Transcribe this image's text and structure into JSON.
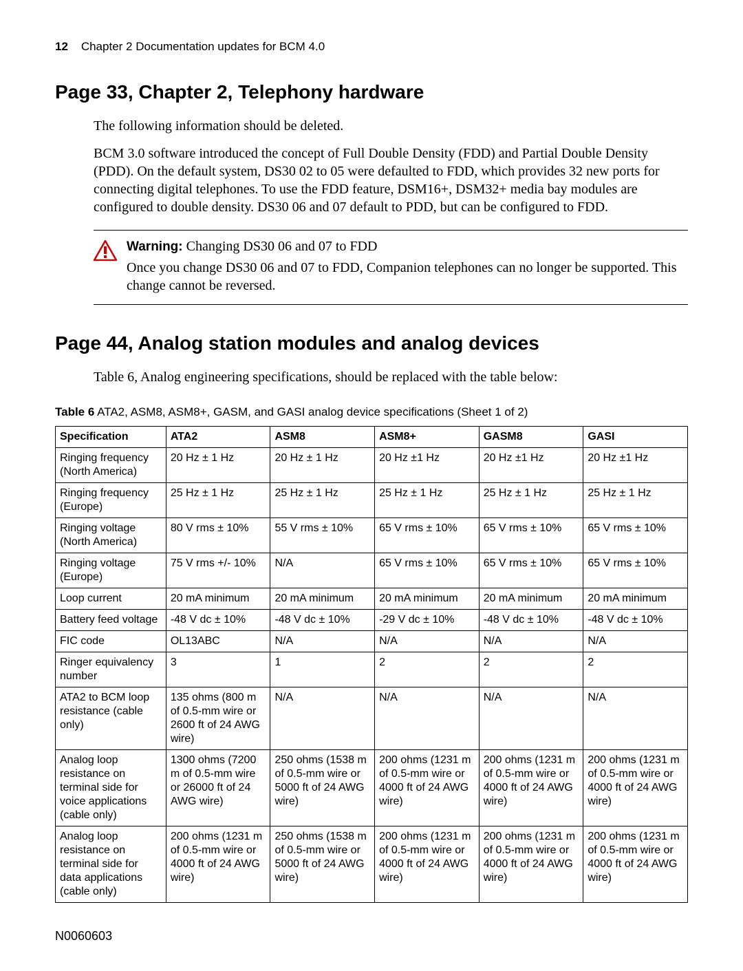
{
  "header": {
    "page_number": "12",
    "chapter_text": "Chapter 2  Documentation updates for BCM 4.0"
  },
  "section1": {
    "heading": "Page 33, Chapter 2, Telephony hardware",
    "para1": "The following information should be deleted.",
    "para2": "BCM 3.0 software introduced the concept of Full Double Density (FDD) and Partial Double Density (PDD). On the default system, DS30 02 to 05 were defaulted to FDD, which provides 32 new ports for connecting digital telephones. To use the FDD feature, DSM16+, DSM32+ media bay modules are configured to double density. DS30 06 and 07 default to PDD, but can be configured to FDD."
  },
  "warning": {
    "label": "Warning:",
    "title_rest": " Changing DS30 06 and 07 to FDD",
    "body": "Once you change DS30 06 and 07 to FDD, Companion telephones can no longer be supported. This change cannot be reversed.",
    "icon_color": "#d10000"
  },
  "section2": {
    "heading": "Page 44, Analog station modules and analog devices",
    "para1": "Table 6, Analog engineering specifications, should be replaced with the table below:"
  },
  "table": {
    "caption_bold": "Table 6",
    "caption_rest": "   ATA2, ASM8, ASM8+, GASM, and GASI analog device specifications (Sheet 1 of 2)",
    "columns": [
      "Specification",
      "ATA2",
      "ASM8",
      "ASM8+",
      "GASM8",
      "GASI"
    ],
    "rows": [
      [
        "Ringing frequency (North America)",
        "20 Hz ± 1 Hz",
        "20 Hz ± 1 Hz",
        "20 Hz ±1 Hz",
        "20 Hz ±1 Hz",
        "20 Hz ±1 Hz"
      ],
      [
        "Ringing frequency (Europe)",
        "25 Hz ± 1 Hz",
        "25 Hz ± 1 Hz",
        "25 Hz ± 1 Hz",
        "25 Hz ± 1 Hz",
        "25 Hz ± 1 Hz"
      ],
      [
        "Ringing voltage (North America)",
        "80 V rms ± 10%",
        "55 V rms ± 10%",
        "65 V rms ± 10%",
        "65 V rms ± 10%",
        "65 V rms ± 10%"
      ],
      [
        "Ringing voltage (Europe)",
        "75 V rms +/- 10%",
        "N/A",
        "65 V rms ± 10%",
        "65 V rms ± 10%",
        "65 V rms ± 10%"
      ],
      [
        "Loop current",
        "20 mA minimum",
        "20 mA minimum",
        "20 mA minimum",
        "20 mA minimum",
        "20 mA minimum"
      ],
      [
        "Battery feed voltage",
        "-48 V dc ± 10%",
        "-48 V dc ± 10%",
        "-29 V dc ± 10%",
        "-48 V dc ± 10%",
        "-48 V dc ± 10%"
      ],
      [
        "FIC code",
        "OL13ABC",
        "N/A",
        "N/A",
        "N/A",
        "N/A"
      ],
      [
        "Ringer equivalency number",
        "3",
        "1",
        "2",
        "2",
        "2"
      ],
      [
        "ATA2 to BCM loop resistance (cable only)",
        "135 ohms (800 m of 0.5-mm wire or 2600 ft of 24 AWG wire)",
        "N/A",
        "N/A",
        "N/A",
        "N/A"
      ],
      [
        "Analog loop resistance on terminal side for voice applications (cable only)",
        "1300 ohms (7200 m of 0.5-mm wire or 26000 ft of 24 AWG wire)",
        "250 ohms (1538 m of 0.5-mm wire or 5000 ft of 24 AWG wire)",
        "200 ohms (1231 m of 0.5-mm wire or 4000 ft of 24 AWG wire)",
        "200 ohms (1231 m of 0.5-mm wire or 4000 ft of 24 AWG wire)",
        "200 ohms (1231 m of 0.5-mm wire or 4000 ft of 24 AWG wire)"
      ],
      [
        "Analog loop resistance on terminal side for data applications (cable only)",
        "200 ohms (1231 m of 0.5-mm wire or 4000 ft of 24 AWG wire)",
        "250 ohms (1538 m of 0.5-mm wire or 5000 ft of 24 AWG wire)",
        "200 ohms (1231 m of 0.5-mm wire or 4000 ft of 24 AWG wire)",
        "200 ohms (1231 m of 0.5-mm wire or 4000 ft of 24 AWG wire)",
        "200 ohms (1231 m of 0.5-mm wire or 4000 ft of 24 AWG wire)"
      ]
    ]
  },
  "footer": {
    "doc_number": "N0060603"
  }
}
